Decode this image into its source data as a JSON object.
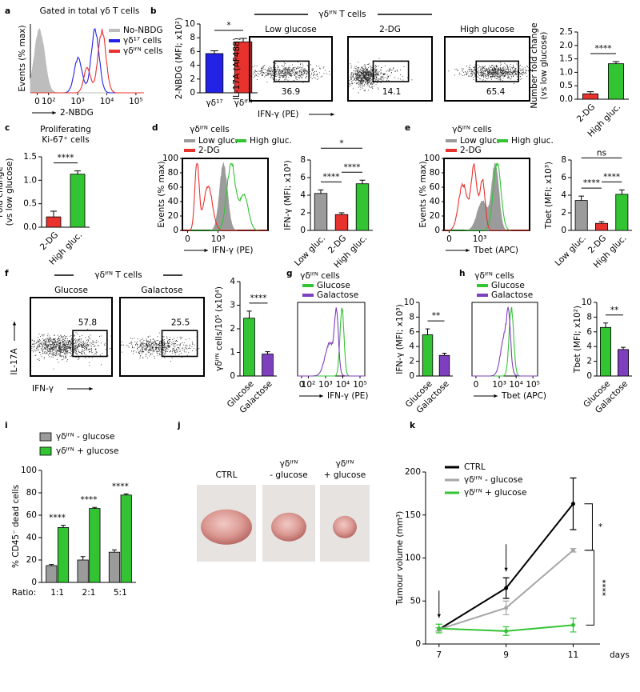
{
  "chart_data": [
    {
      "panel": "a",
      "type": "flow-histogram",
      "title": "Gated in total γδ T cells",
      "ylabel": "Events (% max)",
      "xlabel": "2-NBDG",
      "log": true,
      "xticks": [
        0,
        {
          "value": 100,
          "label": "10²"
        },
        {
          "value": 1000,
          "label": "10³"
        },
        {
          "value": 10000,
          "label": "10⁴"
        },
        {
          "value": 100000,
          "label": "10⁵"
        }
      ],
      "series": [
        {
          "name": "No-NBDG",
          "color": "#bdbdbd"
        },
        {
          "name": "γδ¹⁷ cells",
          "color": "#2323e6"
        },
        {
          "name": "γδᴵᶠᴺ cells",
          "color": "#e8322e"
        }
      ]
    },
    {
      "type": "bar",
      "ylabel": "2-NBDG (MFI; x10²)",
      "categories": [
        "γδ¹⁷",
        "γδᴵᶠᴺ"
      ],
      "values": [
        5.7,
        7.4
      ],
      "errors": [
        0.4,
        0.5
      ],
      "colors": [
        "#2323e6",
        "#e8322e"
      ],
      "ylim": [
        0,
        10
      ],
      "yticks": [
        0,
        2,
        4,
        6,
        8,
        10
      ],
      "significance": [
        {
          "label": "*",
          "between": [
            "γδ¹⁷",
            "γδᴵᶠᴺ"
          ]
        }
      ]
    },
    {
      "panel": "b",
      "type": "flow-scatter",
      "title": "γδᴵᶠᴺ T cells",
      "ylabel": "IL-17A (AF488)",
      "xlabel": "IFN-γ (PE)",
      "plots": [
        {
          "title": "Low glucose",
          "gate": 36.9
        },
        {
          "title": "2-DG",
          "gate": 14.1
        },
        {
          "title": "High glucose",
          "gate": 65.4
        }
      ]
    },
    {
      "type": "bar",
      "ylabel": [
        "Number fold change",
        "(vs low glucose)"
      ],
      "categories": [
        "2-DG",
        "High gluc."
      ],
      "values": [
        0.2,
        1.32
      ],
      "errors": [
        0.08,
        0.08
      ],
      "colors": [
        "#e8322e",
        "#33c433"
      ],
      "ylim": [
        0,
        2.5
      ],
      "yticks": [
        {
          "value": 0,
          "label": "0.0"
        },
        0.5,
        {
          "value": 1,
          "label": "1.0"
        },
        1.5,
        {
          "value": 2,
          "label": "2.0"
        },
        2.5
      ],
      "significance": [
        {
          "label": "****",
          "between": [
            "2-DG",
            "High gluc."
          ]
        }
      ]
    },
    {
      "panel": "c",
      "type": "bar",
      "title": [
        "Proliferating",
        "Ki-67⁺ cells"
      ],
      "ylabel": [
        "Fold change",
        "(vs low glucose)"
      ],
      "categories": [
        "2-DG",
        "High gluc."
      ],
      "values": [
        0.22,
        1.13
      ],
      "errors": [
        0.12,
        0.07
      ],
      "colors": [
        "#e8322e",
        "#33c433"
      ],
      "ylim": [
        0,
        1.5
      ],
      "yticks": [
        {
          "value": 0,
          "label": "0.0"
        },
        0.5,
        {
          "value": 1,
          "label": "1.0"
        },
        1.5
      ],
      "significance": [
        {
          "label": "****",
          "between": [
            "2-DG",
            "High gluc."
          ]
        }
      ]
    },
    {
      "panel": "d",
      "type": "flow-histogram",
      "title": "γδᴵᶠᴺ cells",
      "ylabel": "Events (% max)",
      "xlabel": "IFN-γ (PE)",
      "log": true,
      "ylim": [
        0,
        100
      ],
      "yticks": [
        0,
        20,
        40,
        60,
        80,
        100
      ],
      "xticks": [
        0,
        {
          "value": 1000,
          "label": "10³"
        }
      ],
      "series": [
        {
          "name": "Low gluc.",
          "color": "#9b9b9b"
        },
        {
          "name": "High gluc.",
          "color": "#33c433"
        },
        {
          "name": "2-DG",
          "color": "#e8322e"
        }
      ]
    },
    {
      "type": "bar",
      "ylabel": "IFN-γ (MFI; x10³)",
      "categories": [
        "Low gluc.",
        "2-DG",
        "High gluc."
      ],
      "values": [
        4.2,
        1.8,
        5.3
      ],
      "errors": [
        0.4,
        0.2,
        0.4
      ],
      "colors": [
        "#9b9b9b",
        "#e8322e",
        "#33c433"
      ],
      "ylim": [
        0,
        8
      ],
      "yticks": [
        0,
        2,
        4,
        6,
        8
      ],
      "significance": [
        {
          "label": "****",
          "between": [
            "Low gluc.",
            "2-DG"
          ]
        },
        {
          "label": "****",
          "between": [
            "2-DG",
            "High gluc."
          ]
        },
        {
          "label": "*",
          "between": [
            "Low gluc.",
            "High gluc."
          ]
        }
      ]
    },
    {
      "panel": "e",
      "type": "flow-histogram",
      "title": "γδᴵᶠᴺ cells",
      "ylabel": "Events (% max)",
      "xlabel": "Tbet (APC)",
      "log": true,
      "ylim": [
        0,
        100
      ],
      "yticks": [
        0,
        20,
        40,
        60,
        80,
        100
      ],
      "xticks": [
        0,
        {
          "value": 1000,
          "label": "10³"
        }
      ],
      "series": [
        {
          "name": "Low gluc.",
          "color": "#9b9b9b"
        },
        {
          "name": "High gluc.",
          "color": "#33c433"
        },
        {
          "name": "2-DG",
          "color": "#e8322e"
        }
      ]
    },
    {
      "type": "bar",
      "ylabel": "Tbet (MFI; x10³)",
      "categories": [
        "Low gluc.",
        "2-DG",
        "High gluc."
      ],
      "values": [
        3.4,
        0.8,
        4.1
      ],
      "errors": [
        0.5,
        0.2,
        0.5
      ],
      "colors": [
        "#9b9b9b",
        "#e8322e",
        "#33c433"
      ],
      "ylim": [
        0,
        8
      ],
      "yticks": [
        0,
        2,
        4,
        6,
        8
      ],
      "significance": [
        {
          "label": "****",
          "between": [
            "Low gluc.",
            "2-DG"
          ]
        },
        {
          "label": "****",
          "between": [
            "2-DG",
            "High gluc."
          ]
        },
        {
          "label": "ns",
          "between": [
            "Low gluc.",
            "High gluc."
          ]
        }
      ]
    },
    {
      "panel": "f",
      "type": "flow-scatter",
      "title": "γδᴵᶠᴺ T cells",
      "ylabel": "IL-17A",
      "xlabel": "IFN-γ",
      "plots": [
        {
          "title": "Glucose",
          "gate": 57.8
        },
        {
          "title": "Galactose",
          "gate": 25.5
        }
      ]
    },
    {
      "type": "bar",
      "ylabel": "γδᴵᶠᴺ cells/10⁵ (x10⁴)",
      "categories": [
        "Glucose",
        "Galactose"
      ],
      "values": [
        2.45,
        0.93
      ],
      "errors": [
        0.3,
        0.1
      ],
      "colors": [
        "#33c433",
        "#7e3fbe"
      ],
      "ylim": [
        0,
        4
      ],
      "yticks": [
        0,
        1,
        2,
        3,
        4
      ],
      "significance": [
        {
          "label": "****",
          "between": [
            "Glucose",
            "Galactose"
          ]
        }
      ]
    },
    {
      "panel": "g",
      "type": "flow-histogram",
      "title": "γδᴵᶠᴺ cells",
      "xlabel": "IFN-γ (PE)",
      "log": true,
      "xticks": [
        0,
        {
          "value": 100,
          "label": "10²"
        },
        {
          "value": 1000,
          "label": "10³"
        },
        {
          "value": 10000,
          "label": "10⁴"
        },
        {
          "value": 100000,
          "label": "10⁵"
        }
      ],
      "series": [
        {
          "name": "Glucose",
          "color": "#33c433"
        },
        {
          "name": "Galactose",
          "color": "#7e3fbe"
        }
      ]
    },
    {
      "type": "bar",
      "ylabel": "IFN-γ (MFI; x10³)",
      "categories": [
        "Glucose",
        "Galactose"
      ],
      "values": [
        5.6,
        2.8
      ],
      "errors": [
        0.8,
        0.3
      ],
      "colors": [
        "#33c433",
        "#7e3fbe"
      ],
      "ylim": [
        0,
        10
      ],
      "yticks": [
        0,
        2,
        4,
        6,
        8,
        10
      ],
      "significance": [
        {
          "label": "**",
          "between": [
            "Glucose",
            "Galactose"
          ]
        }
      ]
    },
    {
      "panel": "h",
      "type": "flow-histogram",
      "title": "γδᴵᶠᴺ cells",
      "xlabel": "Tbet (APC)",
      "log": true,
      "xticks": [
        0,
        {
          "value": 1000,
          "label": "10³"
        },
        {
          "value": 10000,
          "label": "10⁴"
        },
        {
          "value": 100000,
          "label": "10⁵"
        }
      ],
      "series": [
        {
          "name": "Glucose",
          "color": "#33c433"
        },
        {
          "name": "Galactose",
          "color": "#7e3fbe"
        }
      ]
    },
    {
      "type": "bar",
      "ylabel": "Tbet (MFI; x10²)",
      "categories": [
        "Glucose",
        "Galactose"
      ],
      "values": [
        6.6,
        3.6
      ],
      "errors": [
        0.6,
        0.3
      ],
      "colors": [
        "#33c433",
        "#7e3fbe"
      ],
      "ylim": [
        0,
        10
      ],
      "yticks": [
        0,
        2,
        4,
        6,
        8,
        10
      ],
      "significance": [
        {
          "label": "**",
          "between": [
            "Glucose",
            "Galactose"
          ]
        }
      ]
    },
    {
      "panel": "i",
      "type": "grouped-bar",
      "ylabel": "% CD45⁻ dead cells",
      "ratio_label": "Ratio:",
      "categories": [
        "1:1",
        "2:1",
        "5:1"
      ],
      "series": [
        {
          "name": "γδᴵᶠᴺ - glucose",
          "color": "#9b9b9b",
          "values": [
            15,
            20,
            27
          ],
          "errors": [
            1,
            3,
            2
          ]
        },
        {
          "name": "γδᴵᶠᴺ + glucose",
          "color": "#33c433",
          "values": [
            49,
            66,
            78
          ],
          "errors": [
            2,
            1,
            1
          ]
        }
      ],
      "ylim": [
        0,
        100
      ],
      "yticks": [
        0,
        20,
        40,
        60,
        80,
        100
      ],
      "significance_labels": [
        "****",
        "****",
        "****"
      ]
    },
    {
      "panel": "j",
      "type": "photos",
      "items": [
        {
          "label": [
            "CTRL"
          ]
        },
        {
          "label": [
            "γδᴵᶠᴺ",
            "- glucose"
          ]
        },
        {
          "label": [
            "γδᴵᶠᴺ",
            "+ glucose"
          ]
        }
      ]
    },
    {
      "panel": "k",
      "type": "line",
      "ylabel": "Tumour volume (mm³)",
      "xlabel": "days",
      "x": [
        7,
        9,
        11
      ],
      "xlim": [
        6.6,
        11.8
      ],
      "xticks": [
        7,
        9,
        11
      ],
      "ylim": [
        0,
        200
      ],
      "yticks": [
        0,
        50,
        100,
        150,
        200
      ],
      "treatment_days": [
        7,
        9
      ],
      "series": [
        {
          "name": "CTRL",
          "color": "#000000",
          "values": [
            17,
            65,
            163
          ],
          "errors": [
            2,
            12,
            30
          ]
        },
        {
          "name": "γδᴵᶠᴺ - glucose",
          "color": "#a6a6a6",
          "values": [
            17,
            42,
            109
          ],
          "errors": [
            2,
            8,
            2
          ]
        },
        {
          "name": "γδᴵᶠᴺ + glucose",
          "color": "#33c433",
          "values": [
            18,
            15,
            22
          ],
          "errors": [
            5,
            5,
            8
          ]
        }
      ],
      "significance": [
        {
          "label": "*",
          "between": [
            "CTRL",
            "γδᴵᶠᴺ - glucose"
          ]
        },
        {
          "label": "****",
          "between": [
            "γδᴵᶠᴺ - glucose",
            "γδᴵᶠᴺ + glucose"
          ]
        }
      ]
    }
  ]
}
